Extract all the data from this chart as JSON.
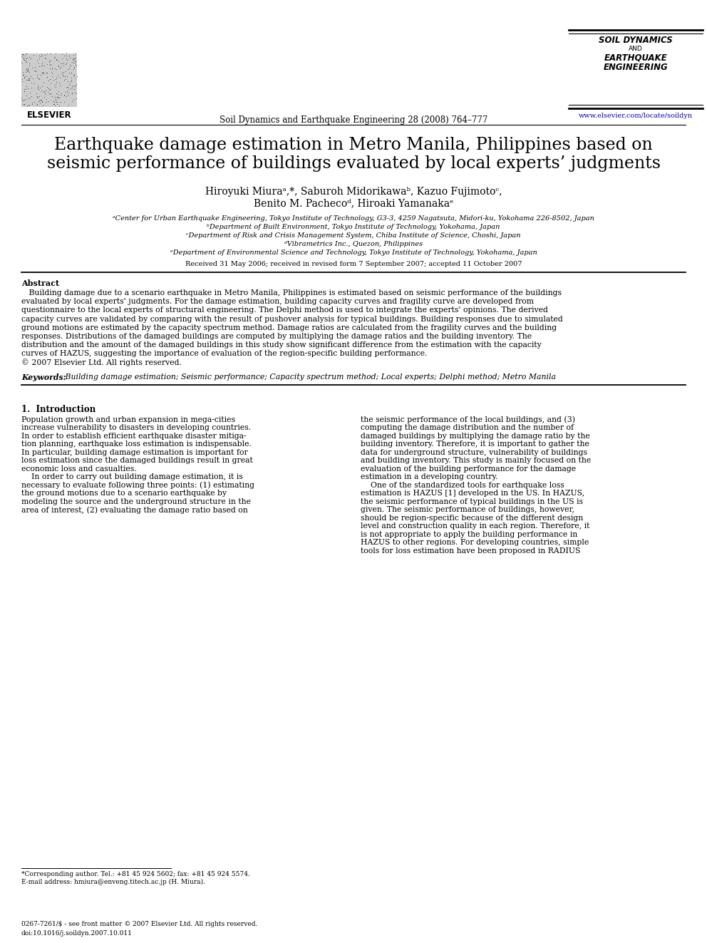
{
  "bg_color": "#ffffff",
  "title_line1": "Earthquake damage estimation in Metro Manila, Philippines based on",
  "title_line2": "seismic performance of buildings evaluated by local experts’ judgments",
  "authors_line1": "Hiroyuki Miuraᵃ,*, Saburoh Midorikawaᵇ, Kazuo Fujimotoᶜ,",
  "authors_line2": "Benito M. Pachecoᵈ, Hiroaki Yamanakaᵉ",
  "affil_a": "ᵃCenter for Urban Earthquake Engineering, Tokyo Institute of Technology, G3-3, 4259 Nagatsuta, Midori-ku, Yokohama 226-8502, Japan",
  "affil_b": "ᵇDepartment of Built Environment, Tokyo Institute of Technology, Yokohama, Japan",
  "affil_c": "ᶜDepartment of Risk and Crisis Management System, Chiba Institute of Science, Choshi, Japan",
  "affil_d": "ᵈVibrametrics Inc., Quezon, Philippines",
  "affil_e": "ᵉDepartment of Environmental Science and Technology, Tokyo Institute of Technology, Yokohama, Japan",
  "received": "Received 31 May 2006; received in revised form 7 September 2007; accepted 11 October 2007",
  "journal_header": "Soil Dynamics and Earthquake Engineering 28 (2008) 764–777",
  "journal_box_line1": "SOIL DYNAMICS",
  "journal_box_line2": "AND",
  "journal_box_line3": "EARTHQUAKE",
  "journal_box_line4": "ENGINEERING",
  "journal_url": "www.elsevier.com/locate/soildyn",
  "elsevier_text": "ELSEVIER",
  "abstract_title": "Abstract",
  "abstract_lines": [
    "   Building damage due to a scenario earthquake in Metro Manila, Philippines is estimated based on seismic performance of the buildings",
    "evaluated by local experts' judgments. For the damage estimation, building capacity curves and fragility curve are developed from",
    "questionnaire to the local experts of structural engineering. The Delphi method is used to integrate the experts' opinions. The derived",
    "capacity curves are validated by comparing with the result of pushover analysis for typical buildings. Building responses due to simulated",
    "ground motions are estimated by the capacity spectrum method. Damage ratios are calculated from the fragility curves and the building",
    "responses. Distributions of the damaged buildings are computed by multiplying the damage ratios and the building inventory. The",
    "distribution and the amount of the damaged buildings in this study show significant difference from the estimation with the capacity",
    "curves of HAZUS, suggesting the importance of evaluation of the region-specific building performance.",
    "© 2007 Elsevier Ltd. All rights reserved."
  ],
  "keywords_label": "Keywords:",
  "keywords_body": " Building damage estimation; Seismic performance; Capacity spectrum method; Local experts; Delphi method; Metro Manila",
  "section1_title": "1.  Introduction",
  "intro_col1_lines": [
    "Population growth and urban expansion in mega-cities",
    "increase vulnerability to disasters in developing countries.",
    "In order to establish efficient earthquake disaster mitiga-",
    "tion planning, earthquake loss estimation is indispensable.",
    "In particular, building damage estimation is important for",
    "loss estimation since the damaged buildings result in great",
    "economic loss and casualties.",
    "    In order to carry out building damage estimation, it is",
    "necessary to evaluate following three points: (1) estimating",
    "the ground motions due to a scenario earthquake by",
    "modeling the source and the underground structure in the",
    "area of interest, (2) evaluating the damage ratio based on"
  ],
  "intro_col2_lines": [
    "the seismic performance of the local buildings, and (3)",
    "computing the damage distribution and the number of",
    "damaged buildings by multiplying the damage ratio by the",
    "building inventory. Therefore, it is important to gather the",
    "data for underground structure, vulnerability of buildings",
    "and building inventory. This study is mainly focused on the",
    "evaluation of the building performance for the damage",
    "estimation in a developing country.",
    "    One of the standardized tools for earthquake loss",
    "estimation is HAZUS [1] developed in the US. In HAZUS,",
    "the seismic performance of typical buildings in the US is",
    "given. The seismic performance of buildings, however,",
    "should be region-specific because of the different design",
    "level and construction quality in each region. Therefore, it",
    "is not appropriate to apply the building performance in",
    "HAZUS to other regions. For developing countries, simple",
    "tools for loss estimation have been proposed in RADIUS"
  ],
  "footnote_star": "*Corresponding author. Tel.: +81 45 924 5602; fax: +81 45 924 5574.",
  "footnote_email": "E-mail address: hmiura@enveng.titech.ac.jp (H. Miura).",
  "footer_line1": "0267-7261/$ - see front matter © 2007 Elsevier Ltd. All rights reserved.",
  "footer_line2": "doi:10.1016/j.soildyn.2007.10.011"
}
